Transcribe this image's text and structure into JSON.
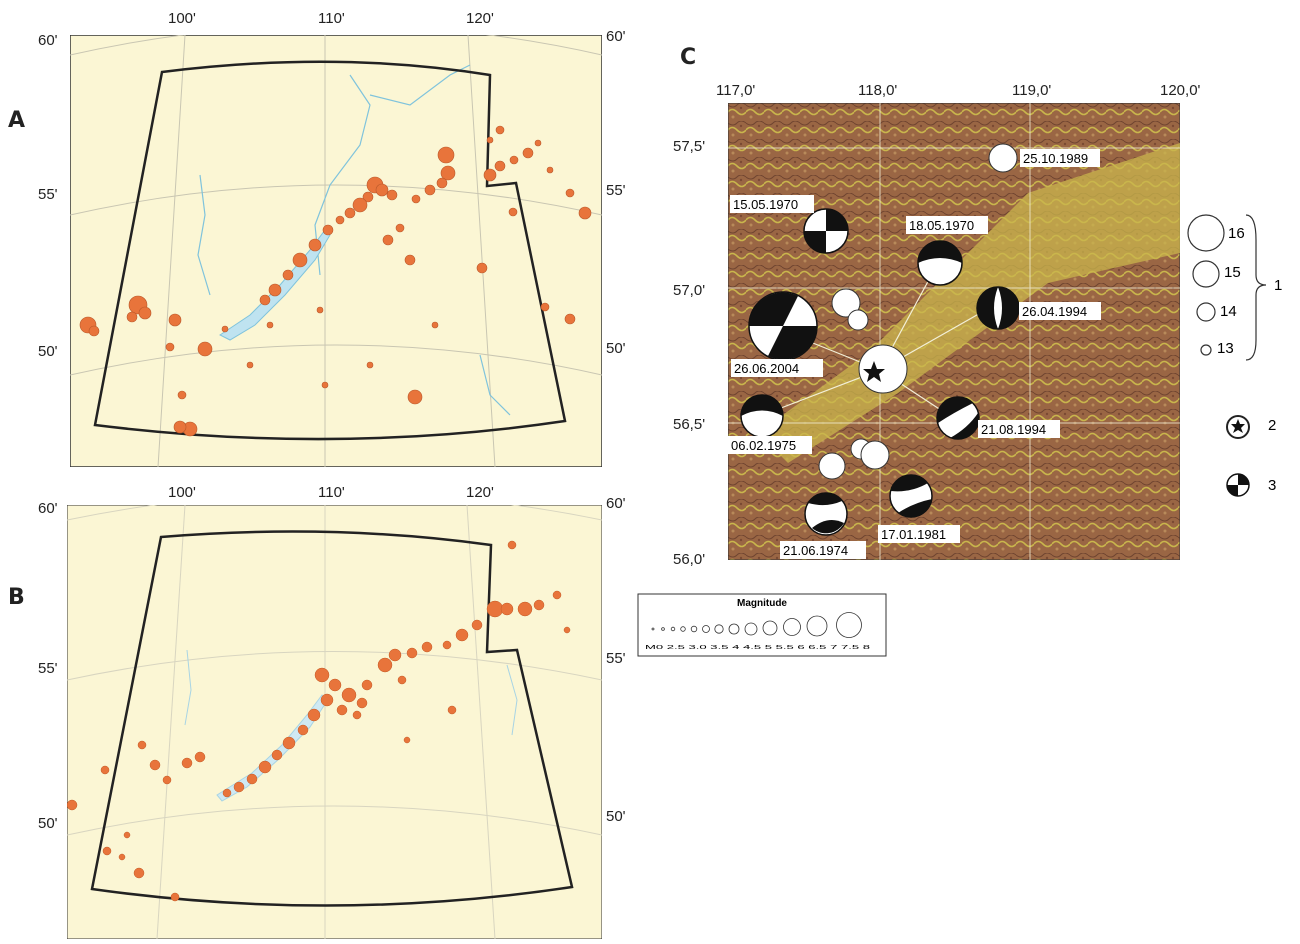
{
  "panel_a": {
    "letter": "A",
    "top_ticks": [
      "100'",
      "110'",
      "120'"
    ],
    "left_ticks": [
      "60'",
      "55'",
      "50'"
    ],
    "right_ticks": [
      "60'",
      "55'",
      "50'"
    ]
  },
  "panel_b": {
    "letter": "B",
    "top_ticks": [
      "100'",
      "110'",
      "120'"
    ],
    "left_ticks": [
      "60'",
      "55'",
      "50'"
    ],
    "right_ticks": [
      "60'",
      "55'",
      "50'"
    ]
  },
  "panel_c": {
    "letter": "C",
    "top_ticks": [
      "117,0'",
      "118,0'",
      "119,0'",
      "120,0'"
    ],
    "left_ticks": [
      "57,5'",
      "57,0'",
      "56,5'",
      "56,0'"
    ],
    "events": [
      {
        "date": "25.10.1989"
      },
      {
        "date": "15.05.1970"
      },
      {
        "date": "18.05.1970"
      },
      {
        "date": "26.04.1994"
      },
      {
        "date": "26.06.2004"
      },
      {
        "date": "21.08.1994"
      },
      {
        "date": "06.02.1975"
      },
      {
        "date": "17.01.1981"
      },
      {
        "date": "21.06.1974"
      }
    ],
    "legend": {
      "sizes": [
        "16",
        "15",
        "14",
        "13"
      ],
      "bracket_label": "1",
      "star_label": "2",
      "mechanism_label": "3"
    }
  },
  "magnitude_legend": {
    "title": "Magnitude",
    "values": "M0 2.5 3.0 3.5 4 4.5 5 5.5 6 6.5 7 7.5 8"
  },
  "colors": {
    "map_fill": "#fbf6d4",
    "event_orange": "#e8743b",
    "water_blue": "#bfe3f0",
    "terrain_brown": "#8a5a3c",
    "terrain_yellow": "#c9b64c"
  }
}
